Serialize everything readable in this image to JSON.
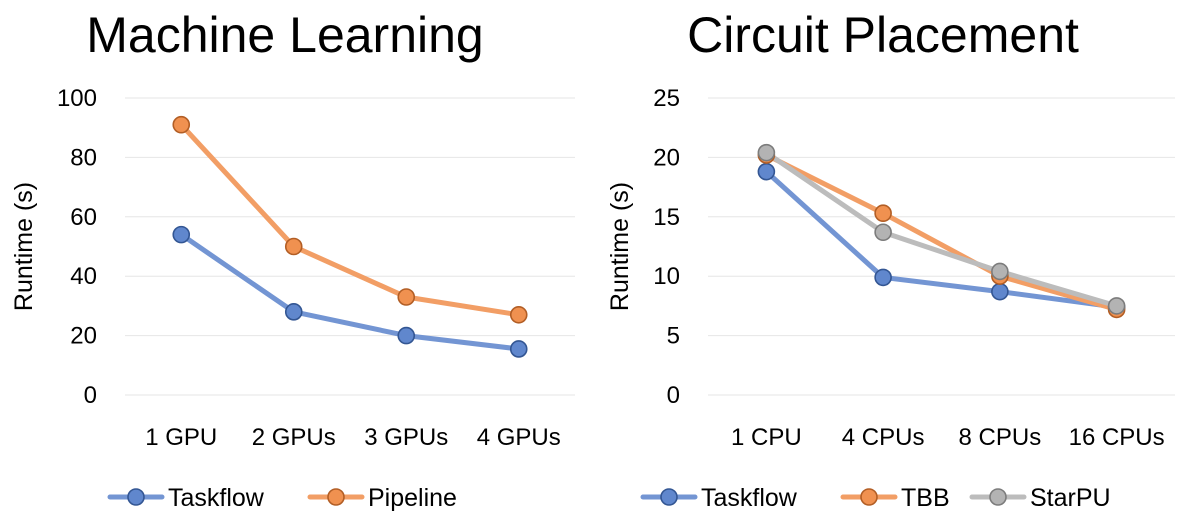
{
  "chart_data": [
    {
      "type": "line",
      "title": "Machine Learning",
      "ylabel": "Runtime (s)",
      "xlabel": "",
      "categories": [
        "1 GPU",
        "2 GPUs",
        "3 GPUs",
        "4 GPUs"
      ],
      "ylim": [
        0,
        100
      ],
      "yticks": [
        0,
        20,
        40,
        60,
        80,
        100
      ],
      "grid": true,
      "legend": "bottom",
      "series": [
        {
          "name": "Taskflow",
          "color": "#4472c4",
          "values": [
            54,
            28,
            20,
            15.5
          ]
        },
        {
          "name": "Pipeline",
          "color": "#ed7d31",
          "values": [
            91,
            50,
            33,
            27
          ]
        }
      ]
    },
    {
      "type": "line",
      "title": "Circuit Placement",
      "ylabel": "Runtime (s)",
      "xlabel": "",
      "categories": [
        "1 CPU",
        "4 CPUs",
        "8 CPUs",
        "16 CPUs"
      ],
      "ylim": [
        0,
        25
      ],
      "yticks": [
        0,
        5,
        10,
        15,
        20,
        25
      ],
      "grid": true,
      "legend": "bottom",
      "series": [
        {
          "name": "Taskflow",
          "color": "#4472c4",
          "values": [
            18.8,
            9.9,
            8.7,
            7.4
          ]
        },
        {
          "name": "TBB",
          "color": "#ed7d31",
          "values": [
            20.2,
            15.3,
            10.0,
            7.2
          ]
        },
        {
          "name": "StarPU",
          "color": "#a5a5a5",
          "values": [
            20.4,
            13.7,
            10.4,
            7.5
          ]
        }
      ]
    }
  ]
}
